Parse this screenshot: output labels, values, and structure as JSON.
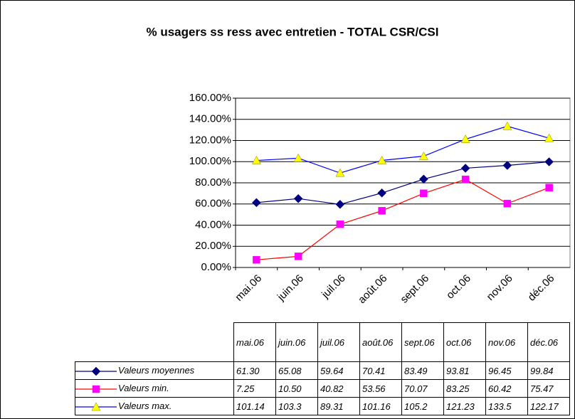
{
  "chart_data": {
    "type": "line",
    "title": "% usagers ss ress avec entretien - TOTAL CSR/CSI",
    "categories": [
      "mai.06",
      "juin.06",
      "juil.06",
      "août.06",
      "sept.06",
      "oct.06",
      "nov.06",
      "déc.06"
    ],
    "ylim": [
      0,
      160
    ],
    "yticks": [
      {
        "value": 0,
        "label": "0.00%"
      },
      {
        "value": 20,
        "label": "20.00%"
      },
      {
        "value": 40,
        "label": "40.00%"
      },
      {
        "value": 60,
        "label": "60.00%"
      },
      {
        "value": 80,
        "label": "80.00%"
      },
      {
        "value": 100,
        "label": "100.00%"
      },
      {
        "value": 120,
        "label": "120.00%"
      },
      {
        "value": 140,
        "label": "140.00%"
      },
      {
        "value": 160,
        "label": "160.00%"
      }
    ],
    "grid": true,
    "series": [
      {
        "name": "Valeurs moyennes",
        "color": "#000080",
        "marker": "diamond",
        "marker_color": "#000080",
        "values": [
          61.3,
          65.08,
          59.64,
          70.41,
          83.49,
          93.81,
          96.45,
          99.84
        ],
        "value_labels": [
          "61.30",
          "65.08",
          "59.64",
          "70.41",
          "83.49",
          "93.81",
          "96.45",
          "99.84"
        ]
      },
      {
        "name": "Valeurs min.",
        "color": "#ff0000",
        "marker": "square",
        "marker_color": "#ff00ff",
        "values": [
          7.25,
          10.5,
          40.82,
          53.56,
          70.07,
          83.25,
          60.42,
          75.47
        ],
        "value_labels": [
          "7.25",
          "10.50",
          "40.82",
          "53.56",
          "70.07",
          "83.25",
          "60.42",
          "75.47"
        ]
      },
      {
        "name": "Valeurs max.",
        "color": "#0000ff",
        "marker": "triangle",
        "marker_color": "#ffff00",
        "values": [
          101.14,
          103.3,
          89.31,
          101.16,
          105.2,
          121.23,
          133.5,
          122.17
        ],
        "value_labels": [
          "101.14",
          "103.3",
          "89.31",
          "101.16",
          "105.2",
          "121.23",
          "133.5",
          "122.17"
        ]
      }
    ]
  }
}
